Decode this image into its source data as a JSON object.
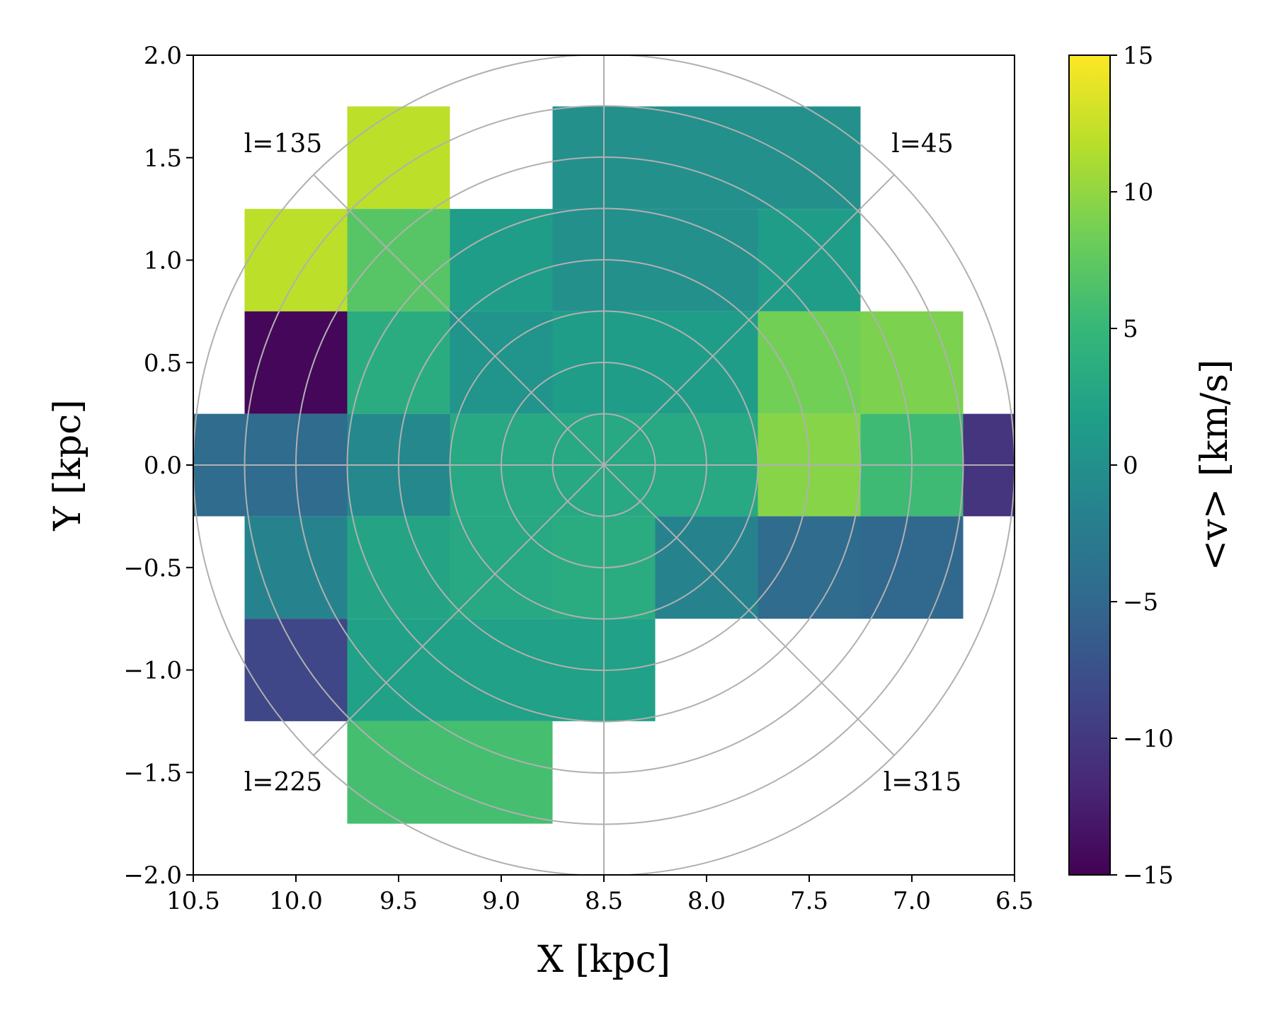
{
  "chart_data": {
    "type": "heatmap",
    "title": "",
    "xlabel": "X [kpc]",
    "ylabel": "Y [kpc]",
    "xlim": [
      10.5,
      6.5
    ],
    "ylim": [
      -2.0,
      2.0
    ],
    "x_ticks": [
      "10.5",
      "10.0",
      "9.5",
      "9.0",
      "8.5",
      "8.0",
      "7.5",
      "7.0",
      "6.5"
    ],
    "y_ticks": [
      "2.0",
      "1.5",
      "1.0",
      "0.5",
      "0.0",
      "−0.5",
      "−1.0",
      "−1.5",
      "−2.0"
    ],
    "bin_size_kpc": 0.5,
    "cells": [
      {
        "x": 9.5,
        "y": 1.5,
        "v": 12
      },
      {
        "x": 8.5,
        "y": 1.5,
        "v": 0
      },
      {
        "x": 8.0,
        "y": 1.5,
        "v": 0
      },
      {
        "x": 7.5,
        "y": 1.5,
        "v": 0
      },
      {
        "x": 10.0,
        "y": 1.0,
        "v": 12
      },
      {
        "x": 9.5,
        "y": 1.0,
        "v": 7
      },
      {
        "x": 9.0,
        "y": 1.0,
        "v": 1.5
      },
      {
        "x": 8.5,
        "y": 1.0,
        "v": 0
      },
      {
        "x": 8.0,
        "y": 1.0,
        "v": 0
      },
      {
        "x": 7.5,
        "y": 1.0,
        "v": 1.5
      },
      {
        "x": 10.0,
        "y": 0.5,
        "v": -14.5
      },
      {
        "x": 9.5,
        "y": 0.5,
        "v": 3.5
      },
      {
        "x": 9.0,
        "y": 0.5,
        "v": 0.5
      },
      {
        "x": 8.5,
        "y": 0.5,
        "v": 1.5
      },
      {
        "x": 8.0,
        "y": 0.5,
        "v": 1.5
      },
      {
        "x": 7.5,
        "y": 0.5,
        "v": 8.5
      },
      {
        "x": 7.0,
        "y": 0.5,
        "v": 9
      },
      {
        "x": 10.5,
        "y": 0.0,
        "v": -4.5
      },
      {
        "x": 10.0,
        "y": 0.0,
        "v": -4.5
      },
      {
        "x": 9.5,
        "y": 0.0,
        "v": -1
      },
      {
        "x": 9.0,
        "y": 0.0,
        "v": 3
      },
      {
        "x": 8.5,
        "y": 0.0,
        "v": 3
      },
      {
        "x": 8.0,
        "y": 0.0,
        "v": 3
      },
      {
        "x": 7.5,
        "y": 0.0,
        "v": 9.5
      },
      {
        "x": 7.0,
        "y": 0.0,
        "v": 5.5
      },
      {
        "x": 6.5,
        "y": 0.0,
        "v": -10.5
      },
      {
        "x": 10.0,
        "y": -0.5,
        "v": -1.5
      },
      {
        "x": 9.5,
        "y": -0.5,
        "v": 2.5
      },
      {
        "x": 9.0,
        "y": -0.5,
        "v": 3
      },
      {
        "x": 8.5,
        "y": -0.5,
        "v": 3.5
      },
      {
        "x": 8.0,
        "y": -0.5,
        "v": -1.5
      },
      {
        "x": 7.5,
        "y": -0.5,
        "v": -4.5
      },
      {
        "x": 7.0,
        "y": -0.5,
        "v": -5
      },
      {
        "x": 10.0,
        "y": -1.0,
        "v": -8.5
      },
      {
        "x": 9.5,
        "y": -1.0,
        "v": 2
      },
      {
        "x": 9.0,
        "y": -1.0,
        "v": 2
      },
      {
        "x": 8.5,
        "y": -1.0,
        "v": 2
      },
      {
        "x": 9.5,
        "y": -1.5,
        "v": 6
      },
      {
        "x": 9.0,
        "y": -1.5,
        "v": 6
      }
    ],
    "polar_grid": {
      "center": [
        8.5,
        0.0
      ],
      "radii_kpc": [
        0.25,
        0.5,
        0.75,
        1.0,
        1.25,
        1.5,
        1.75,
        2.0
      ],
      "spoke_angles_deg": [
        0,
        45,
        90,
        135,
        180,
        225,
        270,
        315
      ]
    },
    "annotations": [
      {
        "text": "l=135",
        "x": 10.05,
        "y": 1.55
      },
      {
        "text": "l=45",
        "x": 6.95,
        "y": 1.55
      },
      {
        "text": "l=225",
        "x": 10.05,
        "y": -1.55
      },
      {
        "text": "l=315",
        "x": 6.95,
        "y": -1.55
      }
    ],
    "colorbar": {
      "label": "<v> [km/s]",
      "colormap": "viridis",
      "range": [
        -15,
        15
      ],
      "ticks": [
        15,
        10,
        5,
        0,
        -5,
        -10,
        -15
      ],
      "tick_labels": [
        "15",
        "10",
        "5",
        "0",
        "−5",
        "−10",
        "−15"
      ]
    }
  },
  "colors": {
    "grid": "#b0b0b0",
    "axes": "#000000",
    "viridis_stops": [
      "#440154",
      "#482878",
      "#3e4989",
      "#31688e",
      "#26828e",
      "#1f9e89",
      "#35b779",
      "#6ece58",
      "#b5de2b",
      "#fde725"
    ]
  }
}
